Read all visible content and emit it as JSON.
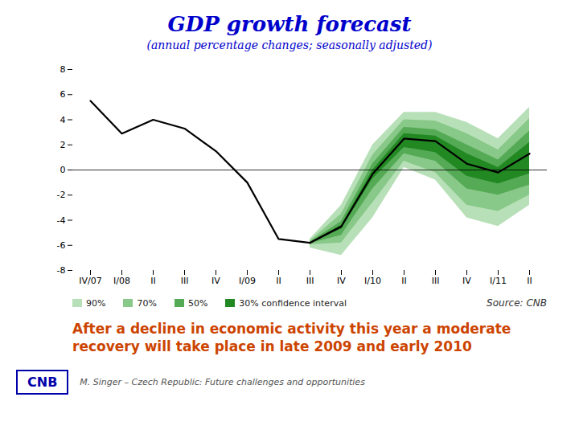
{
  "chart_data": {
    "type": "fan",
    "title": "GDP growth forecast",
    "title_color": "#0000CC",
    "subtitle": "(annual percentage changes; seasonally adjusted)",
    "subtitle_color": "#0000CC",
    "source": "Source: CNB",
    "bottom_text": "After a decline in economic activity this year a moderate\nrecovery will take place in late 2009 and early 2010",
    "bottom_text_color": "#CC4400",
    "logo": "CNB",
    "logo_color": "#0000AA",
    "footnote": "M. Singer – Czech Republic: Future challenges and opportunities",
    "categories": [
      "IV/07",
      "I/08",
      "II",
      "III",
      "IV",
      "I/09",
      "II",
      "III",
      "IV",
      "I/10",
      "II",
      "III",
      "IV",
      "I/11",
      "II"
    ],
    "ylim": [
      -8,
      8
    ],
    "yticks": [
      -8,
      -6,
      -4,
      -2,
      0,
      2,
      4,
      6,
      8
    ],
    "grid": false,
    "hline": 0,
    "series": [
      {
        "type": "band",
        "name": "90%",
        "color": "#b8e0b8",
        "lower": [
          null,
          null,
          null,
          null,
          null,
          null,
          null,
          -6.2,
          -6.8,
          -3.8,
          0.2,
          -0.8,
          -3.8,
          -4.5,
          -2.8
        ],
        "upper": [
          null,
          null,
          null,
          null,
          null,
          null,
          null,
          -5.5,
          -2.8,
          2.0,
          4.6,
          4.6,
          3.8,
          2.5,
          5.0
        ]
      },
      {
        "type": "band",
        "name": "70%",
        "color": "#88c888",
        "lower": [
          null,
          null,
          null,
          null,
          null,
          null,
          null,
          -5.95,
          -5.8,
          -2.6,
          0.7,
          -0.2,
          -2.8,
          -3.3,
          -2.0
        ],
        "upper": [
          null,
          null,
          null,
          null,
          null,
          null,
          null,
          -5.65,
          -3.5,
          1.2,
          4.0,
          3.9,
          2.9,
          1.6,
          4.1
        ]
      },
      {
        "type": "band",
        "name": "50%",
        "color": "#55aa55",
        "lower": [
          null,
          null,
          null,
          null,
          null,
          null,
          null,
          -5.85,
          -5.2,
          -1.5,
          1.3,
          0.7,
          -1.5,
          -2.0,
          -1.2
        ],
        "upper": [
          null,
          null,
          null,
          null,
          null,
          null,
          null,
          -5.75,
          -4.1,
          0.5,
          3.4,
          3.2,
          2.0,
          0.8,
          3.1
        ]
      },
      {
        "type": "band",
        "name": "30% confidence interval",
        "color": "#228822",
        "lower": [
          null,
          null,
          null,
          null,
          null,
          null,
          null,
          -5.82,
          -4.7,
          -0.7,
          1.8,
          1.4,
          -0.5,
          -1.1,
          -0.3
        ],
        "upper": [
          null,
          null,
          null,
          null,
          null,
          null,
          null,
          -5.78,
          -4.4,
          0.0,
          2.9,
          2.7,
          1.3,
          0.2,
          2.2
        ]
      },
      {
        "type": "line",
        "color": "#000000",
        "values": [
          5.5,
          2.9,
          4.0,
          3.3,
          1.5,
          -1.0,
          -5.5,
          -5.8,
          -4.5,
          null,
          null,
          null,
          null,
          null,
          null
        ]
      },
      {
        "type": "line",
        "color": "#000000",
        "values": [
          null,
          null,
          null,
          null,
          null,
          null,
          null,
          -5.8,
          -4.5,
          -0.3,
          2.5,
          2.3,
          0.5,
          -0.2,
          1.3
        ]
      }
    ]
  }
}
